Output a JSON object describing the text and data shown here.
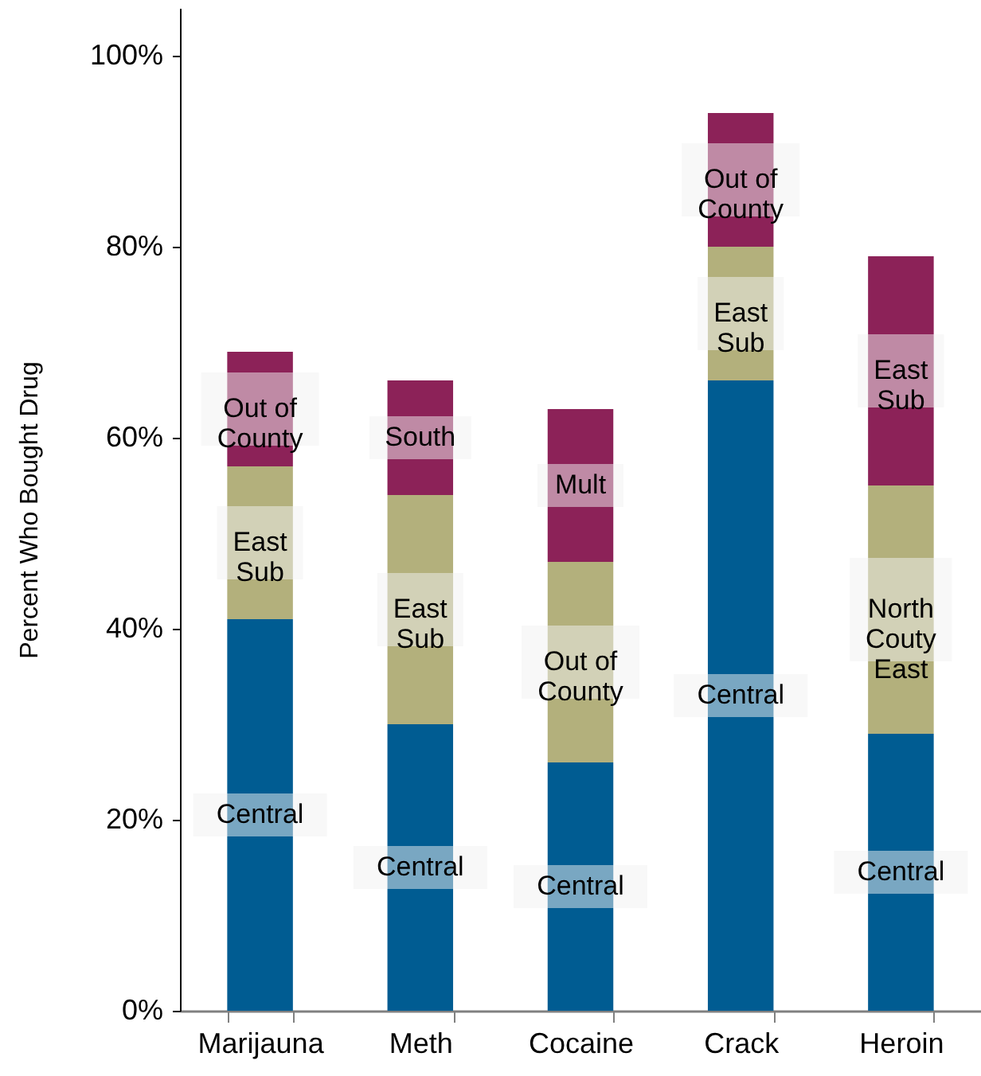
{
  "chart_data": {
    "type": "bar",
    "ylabel": "Percent Who Bought Drug",
    "categories": [
      "Marijauna",
      "Meth",
      "Cocaine",
      "Crack",
      "Heroin"
    ],
    "stacked": true,
    "series": [
      {
        "color": "#005c92",
        "values": [
          41,
          30,
          26,
          66,
          29
        ],
        "value_labels": [
          "Central",
          "Central",
          "Central",
          "Central",
          "Central"
        ]
      },
      {
        "color": "#b3b07c",
        "values": [
          16,
          24,
          21,
          14,
          26
        ],
        "value_labels": [
          "East\nSub",
          "East\nSub",
          "Out of\nCounty",
          "East\nSub",
          "North\nCouty\nEast"
        ]
      },
      {
        "color": "#8c2258",
        "values": [
          12,
          12,
          16,
          14,
          24
        ],
        "value_labels": [
          "Out of\nCounty",
          "South",
          "Mult",
          "Out of\nCounty",
          "East\nSub"
        ]
      }
    ],
    "ylim": [
      0,
      105
    ],
    "yticks": [
      {
        "value": 0,
        "label": "0%"
      },
      {
        "value": 20,
        "label": "20%"
      },
      {
        "value": 40,
        "label": "40%"
      },
      {
        "value": 60,
        "label": "60%"
      },
      {
        "value": 80,
        "label": "80%"
      },
      {
        "value": 100,
        "label": "100%"
      }
    ]
  }
}
